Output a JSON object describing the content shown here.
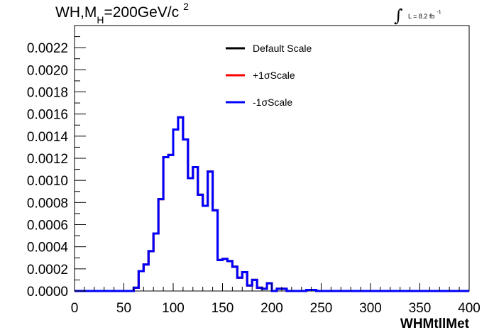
{
  "header": {
    "title_main": "WH,M",
    "title_sub": "H",
    "title_value": "=200GeV/c",
    "title_sup": "2",
    "lumi_label": "L = 8.2 fb",
    "lumi_sup": "-1"
  },
  "chart_data": {
    "type": "line",
    "style": "step-histogram",
    "xlabel": "WHMtllMet",
    "xlim": [
      0,
      400
    ],
    "ylim": [
      0,
      0.0024
    ],
    "xticks": [
      "0",
      "50",
      "100",
      "150",
      "200",
      "250",
      "300",
      "350",
      "400"
    ],
    "yticks": [
      "0.0000",
      "0.0002",
      "0.0004",
      "0.0006",
      "0.0008",
      "0.0010",
      "0.0012",
      "0.0014",
      "0.0016",
      "0.0018",
      "0.0020",
      "0.0022"
    ],
    "grid": false,
    "legend_position": "top-center",
    "bin_edges": [
      0,
      5,
      10,
      15,
      20,
      25,
      30,
      35,
      40,
      45,
      50,
      55,
      60,
      65,
      70,
      75,
      80,
      85,
      90,
      95,
      100,
      105,
      110,
      115,
      120,
      125,
      130,
      135,
      140,
      145,
      150,
      155,
      160,
      165,
      170,
      175,
      180,
      185,
      190,
      195,
      200,
      205,
      210,
      215,
      220,
      225,
      230,
      235,
      240,
      245,
      250,
      255,
      260,
      265,
      270,
      275,
      280,
      285,
      290,
      295,
      300,
      305,
      310,
      315,
      320,
      325,
      330,
      335,
      340,
      345,
      350,
      355,
      360,
      365,
      370,
      375,
      380,
      385,
      390,
      395,
      400
    ],
    "series": [
      {
        "name": "Default Scale",
        "color": "#000000",
        "values": [
          0,
          0,
          0,
          0,
          0,
          0,
          0,
          0,
          0,
          0,
          0,
          0,
          3e-05,
          0.00018,
          0.00024,
          0.00036,
          0.00052,
          0.00083,
          0.00121,
          0.00123,
          0.00146,
          0.00157,
          0.00137,
          0.00102,
          0.00112,
          0.00087,
          0.00077,
          0.00108,
          0.00073,
          0.00028,
          0.00029,
          0.00027,
          0.00022,
          0.00012,
          0.00017,
          5e-05,
          0.0001,
          3e-05,
          2e-05,
          7e-05,
          0,
          2e-05,
          2e-05,
          0,
          0,
          0,
          0,
          1e-05,
          1e-05,
          0,
          0,
          0,
          0,
          0,
          0,
          0,
          0,
          0,
          0,
          0,
          0,
          0,
          0,
          0,
          0,
          0,
          0,
          0,
          0,
          0,
          0,
          0,
          0,
          0,
          0,
          0,
          0,
          0,
          0,
          0
        ]
      },
      {
        "name": "+1σScale",
        "color": "#ff0000",
        "values": [
          0,
          0,
          0,
          0,
          0,
          0,
          0,
          0,
          0,
          0,
          0,
          0,
          3e-05,
          0.00018,
          0.00024,
          0.00036,
          0.00052,
          0.00083,
          0.00121,
          0.00123,
          0.00146,
          0.00157,
          0.00137,
          0.00102,
          0.00112,
          0.00087,
          0.00077,
          0.00108,
          0.00073,
          0.00028,
          0.00029,
          0.00027,
          0.00022,
          0.00012,
          0.00017,
          5e-05,
          0.0001,
          3e-05,
          2e-05,
          7e-05,
          0,
          2e-05,
          2e-05,
          0,
          0,
          0,
          0,
          1e-05,
          1e-05,
          0,
          0,
          0,
          0,
          0,
          0,
          0,
          0,
          0,
          0,
          0,
          0,
          0,
          0,
          0,
          0,
          0,
          0,
          0,
          0,
          0,
          0,
          0,
          0,
          0,
          0,
          0,
          0,
          0,
          0,
          0
        ]
      },
      {
        "name": "-1σScale",
        "color": "#0000ff",
        "values": [
          0,
          0,
          0,
          0,
          0,
          0,
          0,
          0,
          0,
          0,
          0,
          0,
          3e-05,
          0.00018,
          0.00024,
          0.00036,
          0.00052,
          0.00083,
          0.00121,
          0.00123,
          0.00146,
          0.00157,
          0.00137,
          0.00102,
          0.00112,
          0.00087,
          0.00077,
          0.00108,
          0.00073,
          0.00028,
          0.00029,
          0.00027,
          0.00022,
          0.00012,
          0.00017,
          5e-05,
          0.0001,
          3e-05,
          2e-05,
          7e-05,
          0,
          2e-05,
          2e-05,
          0,
          0,
          0,
          0,
          1e-05,
          1e-05,
          0,
          0,
          0,
          0,
          0,
          0,
          0,
          0,
          0,
          0,
          0,
          0,
          0,
          0,
          0,
          0,
          0,
          0,
          0,
          0,
          0,
          0,
          0,
          0,
          0,
          0,
          0,
          0,
          0,
          0,
          0
        ]
      }
    ]
  }
}
